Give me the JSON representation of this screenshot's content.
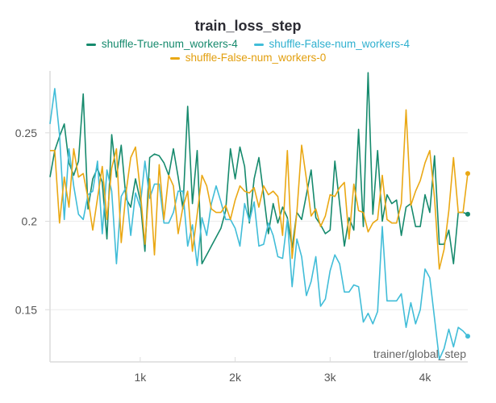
{
  "chart_data": {
    "type": "line",
    "title": "train_loss_step",
    "xlabel": "trainer/global_step",
    "ylabel": "",
    "xlim": [
      50,
      4450
    ],
    "ylim": [
      0.1205,
      0.285
    ],
    "x_start": 50,
    "x_step": 50,
    "xticks": [
      {
        "value": 1000,
        "label": "1k"
      },
      {
        "value": 2000,
        "label": "2k"
      },
      {
        "value": 3000,
        "label": "3k"
      },
      {
        "value": 4000,
        "label": "4k"
      }
    ],
    "yticks": [
      {
        "value": 0.15,
        "label": "0.15"
      },
      {
        "value": 0.2,
        "label": "0.2"
      },
      {
        "value": 0.25,
        "label": "0.25"
      }
    ],
    "grid": true,
    "legend_position": "top-center",
    "series": [
      {
        "name": "shuffle-True-num_workers-4",
        "color": "#168a6d",
        "values": [
          0.225,
          0.24,
          0.248,
          0.255,
          0.233,
          0.226,
          0.234,
          0.272,
          0.207,
          0.224,
          0.23,
          0.222,
          0.19,
          0.249,
          0.225,
          0.243,
          0.213,
          0.208,
          0.224,
          0.212,
          0.183,
          0.236,
          0.238,
          0.237,
          0.233,
          0.226,
          0.241,
          0.225,
          0.207,
          0.265,
          0.21,
          0.24,
          0.176,
          0.181,
          0.186,
          0.191,
          0.196,
          0.206,
          0.241,
          0.224,
          0.242,
          0.231,
          0.199,
          0.224,
          0.236,
          0.215,
          0.193,
          0.21,
          0.199,
          0.208,
          0.202,
          0.185,
          0.205,
          0.201,
          0.215,
          0.229,
          0.202,
          0.198,
          0.193,
          0.195,
          0.234,
          0.21,
          0.186,
          0.202,
          0.195,
          0.252,
          0.197,
          0.284,
          0.204,
          0.24,
          0.2,
          0.215,
          0.21,
          0.212,
          0.192,
          0.208,
          0.21,
          0.197,
          0.197,
          0.215,
          0.205,
          0.237,
          0.187,
          0.187,
          0.195,
          0.176,
          0.205,
          0.205,
          0.204
        ]
      },
      {
        "name": "shuffle-False-num_workers-4",
        "color": "#41bdd8",
        "values": [
          0.255,
          0.275,
          0.249,
          0.201,
          0.241,
          0.22,
          0.204,
          0.201,
          0.215,
          0.217,
          0.234,
          0.193,
          0.229,
          0.217,
          0.176,
          0.214,
          0.219,
          0.192,
          0.216,
          0.208,
          0.234,
          0.213,
          0.221,
          0.221,
          0.199,
          0.199,
          0.205,
          0.217,
          0.217,
          0.186,
          0.198,
          0.175,
          0.202,
          0.192,
          0.21,
          0.22,
          0.211,
          0.201,
          0.201,
          0.196,
          0.186,
          0.21,
          0.2,
          0.211,
          0.186,
          0.187,
          0.199,
          0.192,
          0.18,
          0.179,
          0.201,
          0.163,
          0.19,
          0.18,
          0.158,
          0.166,
          0.18,
          0.152,
          0.156,
          0.172,
          0.181,
          0.176,
          0.16,
          0.16,
          0.164,
          0.163,
          0.143,
          0.148,
          0.142,
          0.149,
          0.197,
          0.155,
          0.155,
          0.155,
          0.159,
          0.14,
          0.154,
          0.142,
          0.15,
          0.173,
          0.168,
          0.145,
          0.122,
          0.128,
          0.139,
          0.129,
          0.14,
          0.138,
          0.135
        ]
      },
      {
        "name": "shuffle-False-num_workers-0",
        "color": "#eaa814",
        "values": [
          0.24,
          0.24,
          0.199,
          0.225,
          0.208,
          0.241,
          0.225,
          0.227,
          0.213,
          0.195,
          0.213,
          0.231,
          0.201,
          0.23,
          0.241,
          0.188,
          0.216,
          0.236,
          0.242,
          0.218,
          0.187,
          0.224,
          0.181,
          0.232,
          0.201,
          0.226,
          0.22,
          0.193,
          0.208,
          0.217,
          0.183,
          0.204,
          0.226,
          0.22,
          0.207,
          0.205,
          0.205,
          0.209,
          0.201,
          0.212,
          0.22,
          0.217,
          0.216,
          0.219,
          0.208,
          0.22,
          0.215,
          0.217,
          0.214,
          0.192,
          0.24,
          0.179,
          0.205,
          0.243,
          0.224,
          0.203,
          0.207,
          0.197,
          0.203,
          0.215,
          0.214,
          0.219,
          0.222,
          0.19,
          0.221,
          0.206,
          0.205,
          0.194,
          0.199,
          0.201,
          0.226,
          0.201,
          0.199,
          0.199,
          0.21,
          0.263,
          0.209,
          0.217,
          0.223,
          0.233,
          0.24,
          0.213,
          0.173,
          0.184,
          0.206,
          0.236,
          0.205,
          0.205,
          0.227
        ]
      }
    ]
  }
}
